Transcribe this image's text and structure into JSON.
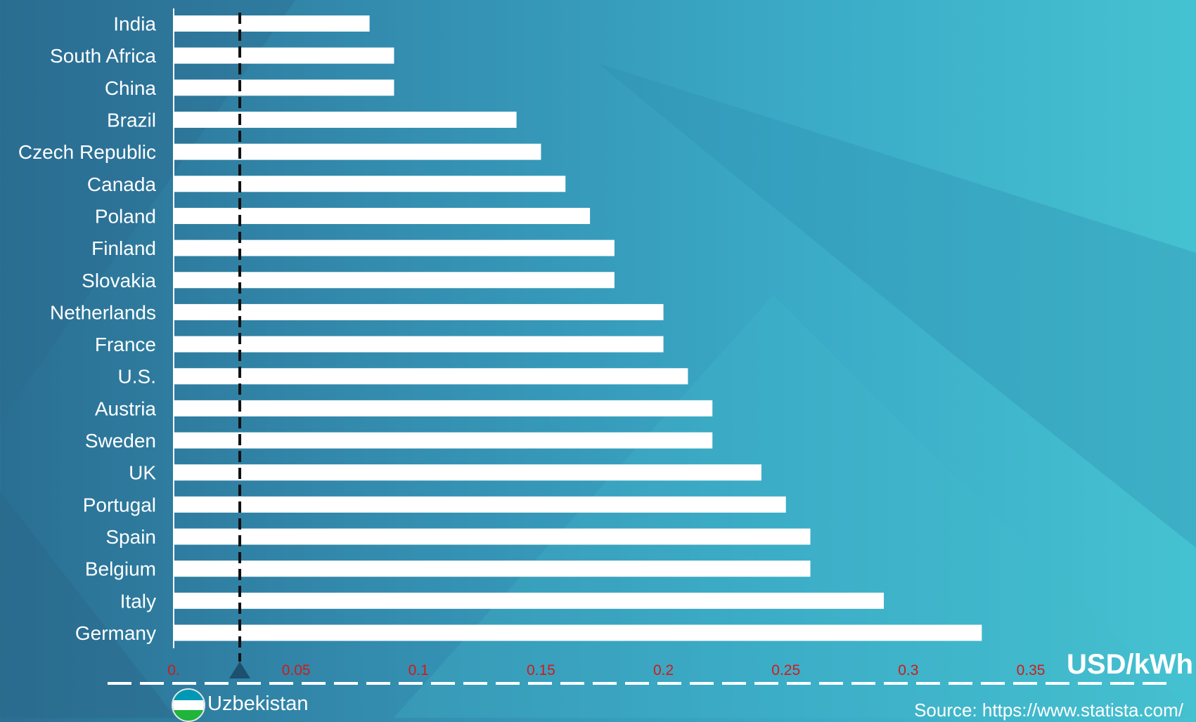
{
  "chart_data": {
    "type": "bar",
    "orientation": "horizontal",
    "categories": [
      "India",
      "South Africa",
      "China",
      "Brazil",
      "Czech Republic",
      "Canada",
      "Poland",
      "Finland",
      "Slovakia",
      "Netherlands",
      "France",
      "U.S.",
      "Austria",
      "Sweden",
      "UK",
      "Portugal",
      "Spain",
      "Belgium",
      "Italy",
      "Germany"
    ],
    "values": [
      0.08,
      0.09,
      0.09,
      0.14,
      0.15,
      0.16,
      0.17,
      0.18,
      0.18,
      0.2,
      0.2,
      0.21,
      0.22,
      0.22,
      0.24,
      0.25,
      0.26,
      0.26,
      0.29,
      0.33
    ],
    "x_ticks": [
      "0.",
      "0.05",
      "0.1",
      "0.15",
      "0.2",
      "0.25",
      "0.3",
      "0.35"
    ],
    "xlim": [
      0,
      0.35
    ],
    "unit_label": "USD/kWh",
    "reference_line": {
      "label": "Uzbekistan",
      "value": 0.027
    },
    "grid": false,
    "colors": {
      "bars": "#ffffff",
      "tick_labels": "#d11a1a",
      "marker": "#1d4f6e"
    }
  },
  "source": "Source: https://www.statista.com/"
}
